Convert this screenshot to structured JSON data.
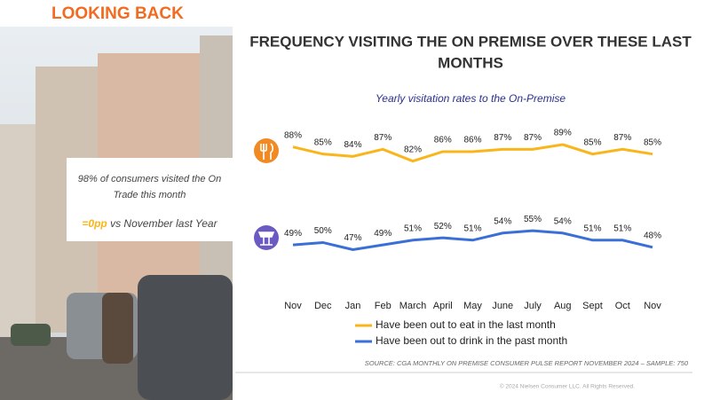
{
  "header": {
    "title": "LOOKING BACK"
  },
  "callout": {
    "text": "98% of consumers visited the On Trade this month",
    "change": "=0pp",
    "change_text": "vs November last Year"
  },
  "chart_data": {
    "type": "line",
    "title": "FREQUENCY VISITING THE ON PREMISE OVER THESE LAST MONTHS",
    "subtitle": "Yearly visitation rates to the On-Premise",
    "categories": [
      "Nov",
      "Dec",
      "Jan",
      "Feb",
      "March",
      "April",
      "May",
      "June",
      "July",
      "Aug",
      "Sept",
      "Oct",
      "Nov"
    ],
    "series": [
      {
        "name": "Have been out to eat in the last month",
        "color": "#f9b51a",
        "values": [
          88,
          85,
          84,
          87,
          82,
          86,
          86,
          87,
          87,
          89,
          85,
          87,
          85
        ],
        "value_labels": [
          "88%",
          "85%",
          "84%",
          "87%",
          "82%",
          "86%",
          "86%",
          "87%",
          "87%",
          "89%",
          "85%",
          "87%",
          "85%"
        ]
      },
      {
        "name": "Have been out to drink in the past month",
        "color": "#3a6fd8",
        "values": [
          49,
          50,
          47,
          49,
          51,
          52,
          51,
          54,
          55,
          54,
          51,
          51,
          48
        ],
        "value_labels": [
          "49%",
          "50%",
          "47%",
          "49%",
          "51%",
          "52%",
          "51%",
          "54%",
          "55%",
          "54%",
          "51%",
          "51%",
          "48%"
        ]
      }
    ]
  },
  "footer": {
    "source": "SOURCE: CGA MONTHLY ON PREMISE CONSUMER PULSE REPORT NOVEMBER 2024 – SAMPLE: 750",
    "copyright": "© 2024 Nielsen Consumer LLC. All Rights Reserved."
  }
}
